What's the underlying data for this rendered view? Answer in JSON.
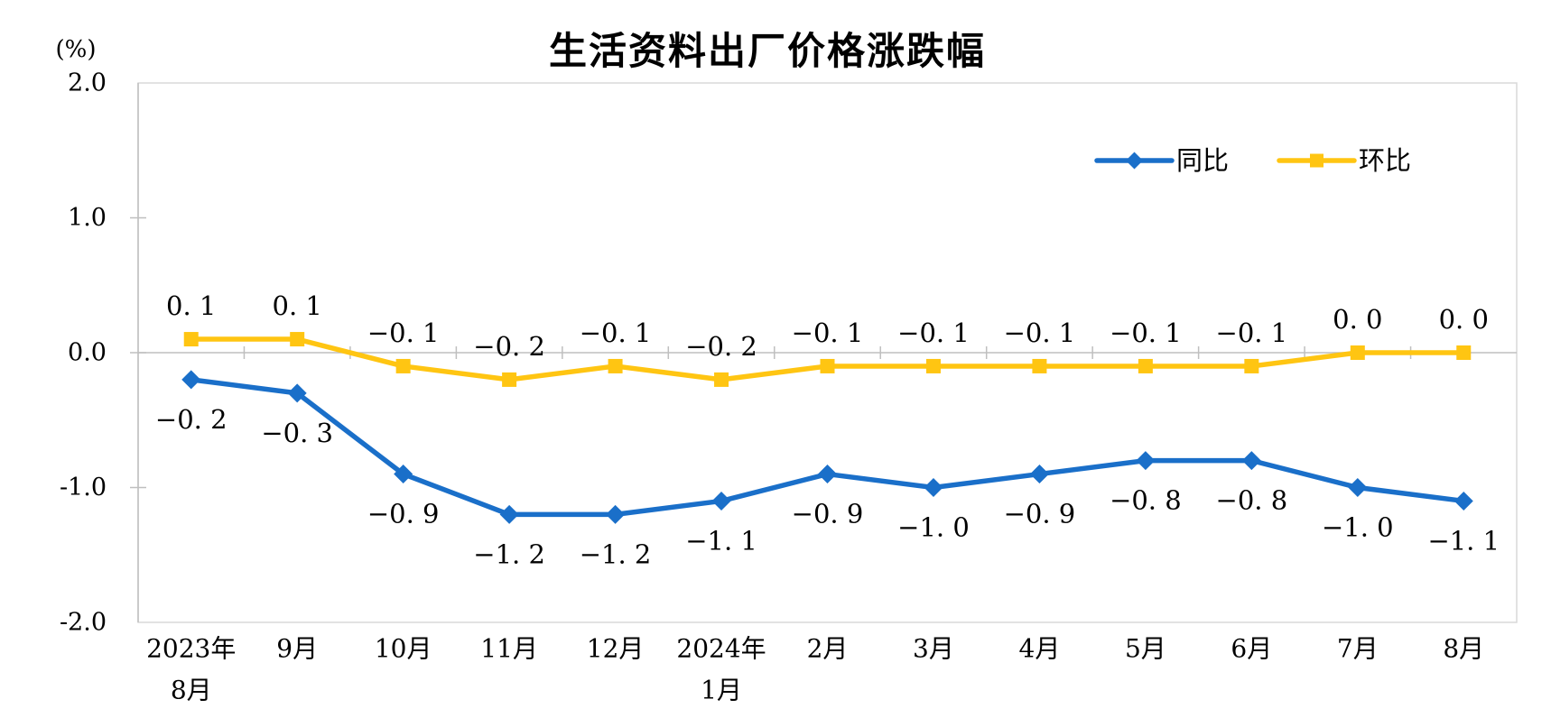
{
  "chart_data": {
    "type": "line",
    "title": "生活资料出厂价格涨跌幅",
    "xlabel": "",
    "ylabel": "(%)",
    "yaxis": {
      "unit": "(%)",
      "min": -2.0,
      "max": 2.0,
      "tick_interval": 1.0,
      "tick_labels": [
        "2.0",
        "1.0",
        "0.0",
        "-1.0",
        "-2.0"
      ]
    },
    "grid": false,
    "legend_position": "top-right-inside",
    "categories": [
      "2023年8月",
      "9月",
      "10月",
      "11月",
      "12月",
      "2024年1月",
      "2月",
      "3月",
      "4月",
      "5月",
      "6月",
      "7月",
      "8月"
    ],
    "category_lines": [
      [
        "2023年",
        "8月"
      ],
      [
        "9月"
      ],
      [
        "10月"
      ],
      [
        "11月"
      ],
      [
        "12月"
      ],
      [
        "2024年",
        "1月"
      ],
      [
        "2月"
      ],
      [
        "3月"
      ],
      [
        "4月"
      ],
      [
        "5月"
      ],
      [
        "6月"
      ],
      [
        "7月"
      ],
      [
        "8月"
      ]
    ],
    "series": [
      {
        "name": "同比",
        "color": "#1A6FC9",
        "marker": "diamond",
        "label_position": "below",
        "values": [
          -0.2,
          -0.3,
          -0.9,
          -1.2,
          -1.2,
          -1.1,
          -0.9,
          -1.0,
          -0.9,
          -0.8,
          -0.8,
          -1.0,
          -1.1
        ],
        "labels": [
          "−0. 2",
          "−0. 3",
          "−0. 9",
          "−1. 2",
          "−1. 2",
          "−1. 1",
          "−0. 9",
          "−1. 0",
          "−0. 9",
          "−0. 8",
          "−0. 8",
          "−1. 0",
          "−1. 1"
        ]
      },
      {
        "name": "环比",
        "color": "#FFC512",
        "marker": "square",
        "label_position": "above",
        "values": [
          0.1,
          0.1,
          -0.1,
          -0.2,
          -0.1,
          -0.2,
          -0.1,
          -0.1,
          -0.1,
          -0.1,
          -0.1,
          0.0,
          0.0
        ],
        "labels": [
          "0. 1",
          "0. 1",
          "−0. 1",
          "−0. 2",
          "−0. 1",
          "−0. 2",
          "−0. 1",
          "−0. 1",
          "−0. 1",
          "−0. 1",
          "−0. 1",
          "0. 0",
          "0. 0"
        ]
      }
    ],
    "colors": {
      "axis_line": "#BFBFBF",
      "plot_border": "#D9D9D9",
      "text": "#000000",
      "background": "#FFFFFF"
    }
  }
}
